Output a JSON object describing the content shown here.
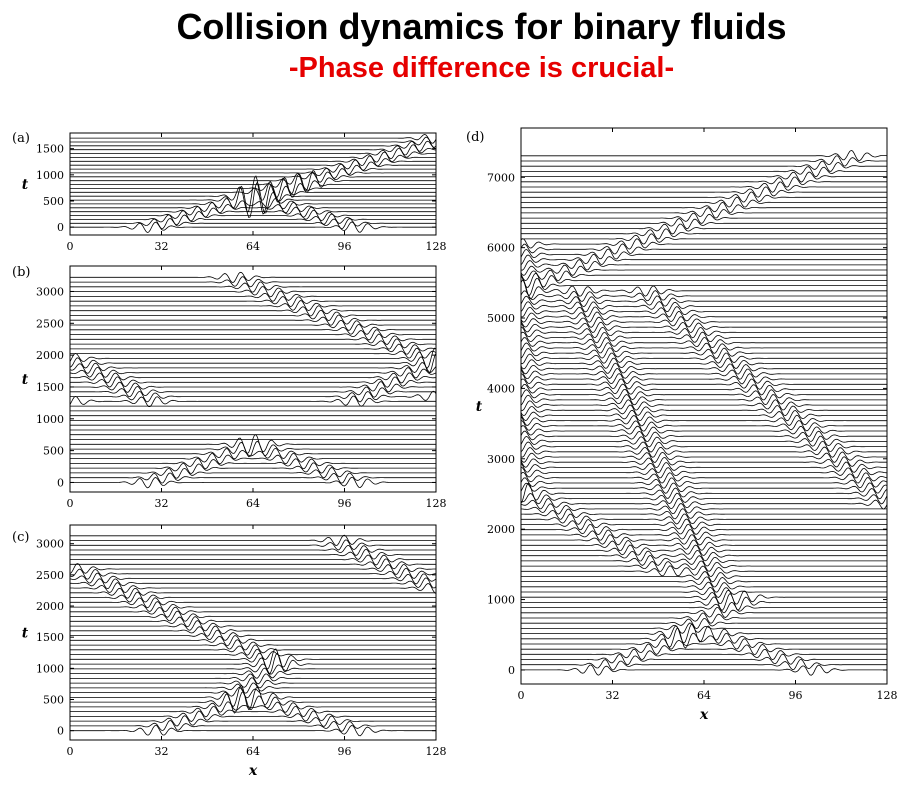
{
  "header": {
    "title": "Collision dynamics for binary fluids",
    "subtitle": "-Phase difference is crucial-"
  },
  "chart_data": [
    {
      "panel": "(a)",
      "type": "line",
      "xlabel": "",
      "ylabel": "t",
      "xlim": [
        0,
        128
      ],
      "ylim": [
        -150,
        1800
      ],
      "xticks": [
        0,
        32,
        64,
        96,
        128
      ],
      "yticks": [
        0,
        500,
        1000,
        1500
      ],
      "wave_tracks": [
        {
          "t": [
            0,
            550
          ],
          "x": [
            28,
            62
          ]
        },
        {
          "t": [
            0,
            550
          ],
          "x": [
            100,
            66
          ]
        },
        {
          "t": [
            550,
            1650
          ],
          "x": [
            64,
            128
          ]
        },
        {
          "t": [
            550,
            900
          ],
          "x": [
            64,
            84
          ]
        }
      ]
    },
    {
      "panel": "(b)",
      "type": "line",
      "xlabel": "",
      "ylabel": "t",
      "xlim": [
        0,
        128
      ],
      "ylim": [
        -150,
        3400
      ],
      "xticks": [
        0,
        32,
        64,
        96,
        128
      ],
      "yticks": [
        0,
        500,
        1000,
        1500,
        2000,
        2500,
        3000
      ],
      "wave_tracks": [
        {
          "t": [
            0,
            550
          ],
          "x": [
            28,
            62
          ]
        },
        {
          "t": [
            0,
            550
          ],
          "x": [
            100,
            66
          ]
        },
        {
          "t": [
            1300,
            1900
          ],
          "x": [
            100,
            128
          ]
        },
        {
          "t": [
            1300,
            1950
          ],
          "x": [
            28,
            0
          ]
        },
        {
          "t": [
            1300,
            1320
          ],
          "x": [
            0,
            128
          ]
        },
        {
          "t": [
            1900,
            3200
          ],
          "x": [
            128,
            58
          ]
        }
      ]
    },
    {
      "panel": "(c)",
      "type": "line",
      "xlabel": "x",
      "ylabel": "t",
      "xlim": [
        0,
        128
      ],
      "ylim": [
        -150,
        3300
      ],
      "xticks": [
        0,
        32,
        64,
        96,
        128
      ],
      "yticks": [
        0,
        500,
        1000,
        1500,
        2000,
        2500,
        3000
      ],
      "wave_tracks": [
        {
          "t": [
            0,
            500
          ],
          "x": [
            30,
            61
          ]
        },
        {
          "t": [
            0,
            500
          ],
          "x": [
            100,
            67
          ]
        },
        {
          "t": [
            500,
            1100
          ],
          "x": [
            58,
            72
          ]
        },
        {
          "t": [
            1100,
            2600
          ],
          "x": [
            72,
            2
          ]
        },
        {
          "t": [
            2300,
            3000
          ],
          "x": [
            128,
            95
          ]
        }
      ]
    },
    {
      "panel": "(d)",
      "type": "line",
      "xlabel": "x",
      "ylabel": "t",
      "xlim": [
        0,
        128
      ],
      "ylim": [
        -200,
        7700
      ],
      "xticks": [
        0,
        32,
        64,
        96,
        128
      ],
      "yticks": [
        0,
        1000,
        2000,
        3000,
        4000,
        5000,
        6000,
        7000
      ],
      "wave_tracks": [
        {
          "t": [
            0,
            500
          ],
          "x": [
            26,
            60
          ]
        },
        {
          "t": [
            0,
            500
          ],
          "x": [
            102,
            68
          ]
        },
        {
          "t": [
            500,
            1000
          ],
          "x": [
            54,
            78
          ]
        },
        {
          "t": [
            1000,
            5400
          ],
          "x": [
            70,
            20
          ]
        },
        {
          "t": [
            1400,
            2500
          ],
          "x": [
            52,
            2
          ]
        },
        {
          "t": [
            2400,
            5400
          ],
          "x": [
            128,
            44
          ]
        },
        {
          "t": [
            2500,
            6000
          ],
          "x": [
            0,
            0
          ]
        },
        {
          "t": [
            5400,
            7500
          ],
          "x": [
            0,
            128
          ]
        }
      ]
    }
  ]
}
